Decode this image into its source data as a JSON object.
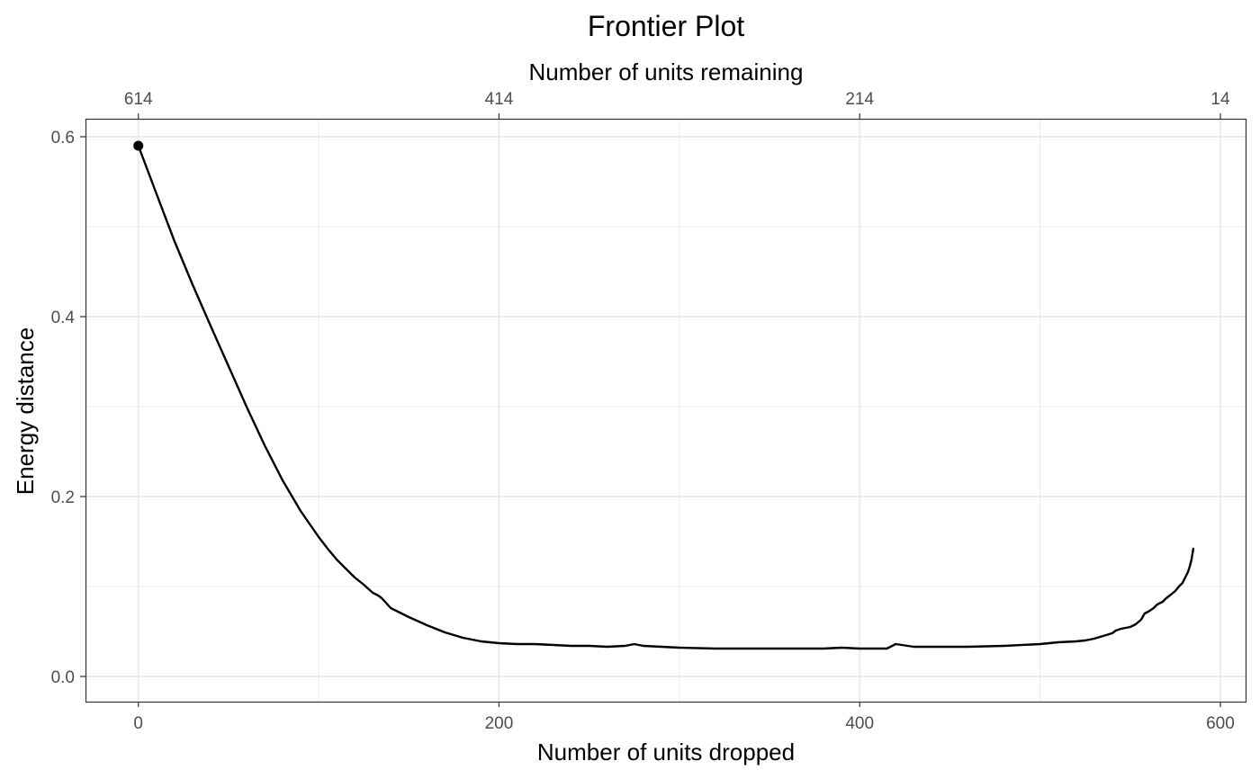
{
  "chart_data": {
    "type": "line",
    "title": "Frontier Plot",
    "xlabel": "Number of units dropped",
    "x2label": "Number of units remaining",
    "ylabel": "Energy distance",
    "xlim": [
      -29.3,
      614
    ],
    "ylim": [
      -0.028,
      0.62
    ],
    "x_ticks": [
      0,
      200,
      400,
      600
    ],
    "x_tick_labels": [
      "0",
      "200",
      "400",
      "600"
    ],
    "x2_ticks": [
      0,
      200,
      400,
      600
    ],
    "x2_tick_labels": [
      "614",
      "414",
      "214",
      "14"
    ],
    "y_ticks": [
      0.0,
      0.2,
      0.4,
      0.6
    ],
    "y_tick_labels": [
      "0.0",
      "0.2",
      "0.4",
      "0.6"
    ],
    "grid": true,
    "colors": {
      "line": "#000000",
      "grid": "#ebebeb",
      "panel_border": "#333333"
    },
    "series": [
      {
        "x": [
          0,
          10,
          20,
          30,
          40,
          50,
          60,
          70,
          80,
          90,
          100,
          105,
          110,
          115,
          120,
          125,
          130,
          133,
          135,
          140,
          150,
          160,
          170,
          180,
          190,
          200,
          210,
          220,
          230,
          240,
          250,
          260,
          270,
          275,
          280,
          300,
          320,
          340,
          360,
          380,
          390,
          400,
          410,
          415,
          420,
          430,
          440,
          460,
          480,
          500,
          510,
          520,
          525,
          530,
          535,
          540,
          542,
          545,
          550,
          553,
          556,
          558,
          560,
          563,
          565,
          568,
          570,
          572,
          575,
          577,
          579,
          580,
          581,
          582,
          583,
          584,
          585
        ],
        "values": [
          0.59,
          0.537,
          0.484,
          0.436,
          0.39,
          0.345,
          0.3,
          0.257,
          0.218,
          0.184,
          0.155,
          0.142,
          0.13,
          0.12,
          0.11,
          0.102,
          0.093,
          0.09,
          0.087,
          0.076,
          0.066,
          0.057,
          0.049,
          0.043,
          0.039,
          0.037,
          0.036,
          0.036,
          0.035,
          0.034,
          0.034,
          0.033,
          0.034,
          0.036,
          0.034,
          0.032,
          0.031,
          0.031,
          0.031,
          0.031,
          0.032,
          0.031,
          0.031,
          0.031,
          0.036,
          0.033,
          0.033,
          0.033,
          0.034,
          0.036,
          0.038,
          0.039,
          0.04,
          0.042,
          0.045,
          0.048,
          0.051,
          0.053,
          0.055,
          0.058,
          0.063,
          0.07,
          0.072,
          0.076,
          0.08,
          0.083,
          0.087,
          0.09,
          0.095,
          0.1,
          0.104,
          0.108,
          0.112,
          0.116,
          0.122,
          0.13,
          0.142
        ]
      }
    ],
    "highlight_point": {
      "x": 0,
      "y": 0.59
    }
  }
}
